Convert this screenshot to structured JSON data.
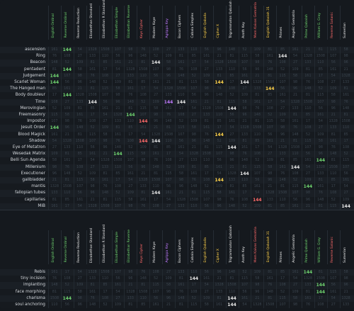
{
  "columns": [
    {
      "name": "English Ordinal",
      "color": "#6fd46f"
    },
    {
      "name": "Reverse Ordinal",
      "color": "#6fd46f"
    },
    {
      "name": "Reverse Reduction",
      "color": "#e8e8e8"
    },
    {
      "name": "Elizabethan Standard",
      "color": "#e8e8e8"
    },
    {
      "name": "Elizabethan R Standard",
      "color": "#e8e8e8"
    },
    {
      "name": "Elizabethan Simple",
      "color": "#6fd46f"
    },
    {
      "name": "Elizabethan Reverse",
      "color": "#6fd46f"
    },
    {
      "name": "Keys Cipher",
      "color": "#ff6a6a"
    },
    {
      "name": "Modern Kaye",
      "color": "#e8e8e8"
    },
    {
      "name": "Agrippa Key",
      "color": "#c07bff"
    },
    {
      "name": "Bacon Ciphers",
      "color": "#e8e8e8"
    },
    {
      "name": "Cabala Simplex",
      "color": "#e8e8e8"
    },
    {
      "name": "English Qaballa",
      "color": "#ffd24a"
    },
    {
      "name": "Cipher X",
      "color": "#ffd24a"
    },
    {
      "name": "Trigrammaton Qabalah",
      "color": "#e8e8e8"
    },
    {
      "name": "Azoth Key",
      "color": "#e8e8e8"
    },
    {
      "name": "Mem Kaivas Gematria",
      "color": "#ff6a6a"
    },
    {
      "name": "English Qabalah 31",
      "color": "#ffd24a"
    },
    {
      "name": "Primes",
      "color": "#e8e8e8"
    },
    {
      "name": "Angelic Gematria",
      "color": "#e8e8e8"
    },
    {
      "name": "Prime Qabalah",
      "color": "#6fd46f"
    },
    {
      "name": "William G. Gray",
      "color": "#6fd46f"
    },
    {
      "name": "Reverse Satanic",
      "color": "#ff6a6a"
    },
    {
      "name": "Sumerian",
      "color": "#e8e8e8"
    }
  ],
  "hit_value": "144",
  "rows": [
    {
      "label": "ascension",
      "hits": [
        1
      ]
    },
    {
      "label": "Ring",
      "hits": [
        18
      ]
    },
    {
      "label": "Beacon",
      "hits": [
        8
      ]
    },
    {
      "label": "pentadent",
      "hits": [
        1
      ]
    },
    {
      "label": "Judgement",
      "hits": [
        0
      ]
    },
    {
      "label": "Scarlet Woman",
      "hits": [
        0,
        13,
        15
      ]
    },
    {
      "label": "The Hanged man",
      "hits": [
        17
      ]
    },
    {
      "label": "Body doubleur",
      "hits": [
        1
      ]
    },
    {
      "label": "Time",
      "hits": [
        3,
        9,
        10
      ]
    },
    {
      "label": "Merovingian",
      "hits": [
        14
      ]
    },
    {
      "label": "Freemasonry",
      "hits": [
        6
      ]
    },
    {
      "label": "Impostor",
      "hits": [
        7
      ]
    },
    {
      "label": "Jesuit Order",
      "hits": [
        0
      ]
    },
    {
      "label": "Blood Magick",
      "hits": [
        13
      ]
    },
    {
      "label": "Shadow",
      "hits": [
        7,
        8
      ]
    },
    {
      "label": "Eye of Metatron",
      "hits": [
        14
      ]
    },
    {
      "label": "Wesedak Matrix",
      "hits": [
        5
      ]
    },
    {
      "label": "Belli Sun Agenda",
      "hits": [
        21
      ]
    },
    {
      "label": "Millenium",
      "hits": [
        19
      ]
    },
    {
      "label": "Executioner",
      "hits": [
        15
      ]
    },
    {
      "label": "gallbladder",
      "hits": [
        13
      ]
    },
    {
      "label": "mantis",
      "hits": [
        20
      ]
    },
    {
      "label": "fallopian tubes",
      "hits": [
        8
      ]
    },
    {
      "label": "capillaries",
      "hits": [
        16
      ]
    },
    {
      "label": "MiB",
      "hits": [
        23
      ]
    }
  ],
  "rows2": [
    {
      "label": "Rebis",
      "hits": [
        20
      ]
    },
    {
      "label": "tiny incision",
      "hits": [
        11
      ]
    },
    {
      "label": "implanting",
      "hits": [
        21
      ]
    },
    {
      "label": "face morphing",
      "hits": [
        21
      ]
    },
    {
      "label": "charisma",
      "hits": [
        1,
        14
      ]
    },
    {
      "label": "soul anchoring",
      "hits": [
        14
      ]
    }
  ],
  "filler": [
    "161",
    "17",
    "54",
    "1328",
    "1508",
    "107",
    "98",
    "76",
    "108",
    "27",
    "133",
    "110",
    "56",
    "96",
    "148",
    "52",
    "109",
    "81",
    "85",
    "161",
    "21",
    "81",
    "115",
    "58"
  ]
}
